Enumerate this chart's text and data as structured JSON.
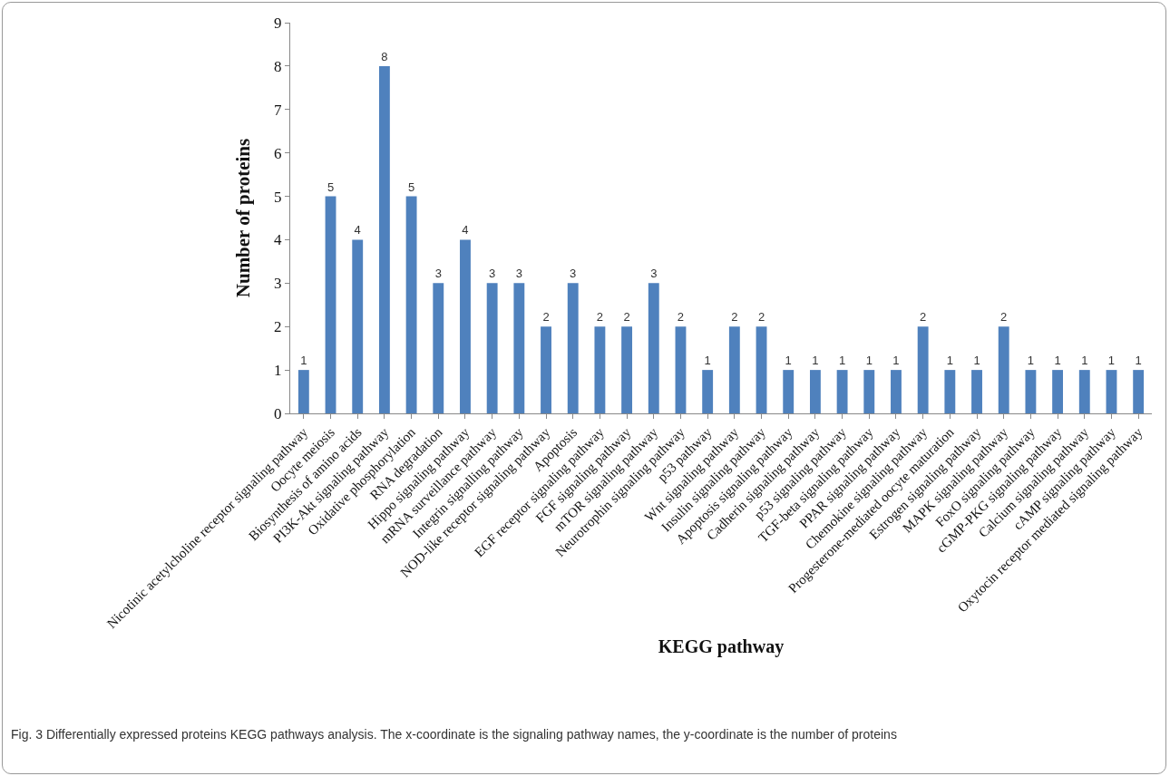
{
  "chart_data": {
    "type": "bar",
    "xlabel": "KEGG pathway",
    "ylabel": "Number of proteins",
    "categories": [
      "Nicotinic acetylcholine receptor signaling pathway",
      "Oocyte meiosis",
      "Biosynthesis of amino acids",
      "PI3K-Akt signaling pathway",
      "Oxidative phosphorylation",
      "RNA degradation",
      "Hippo signaling pathway",
      "mRNA surveillance pathway",
      "Integrin signalling pathway",
      "NOD-like receptor signaling pathway",
      "Apoptosis",
      "EGF receptor signaling pathway",
      "FGF signaling pathway",
      "mTOR signaling pathway",
      "Neurotrophin signaling pathway",
      "p53 pathway",
      "Wnt signaling pathway",
      "Insulin signaling pathway",
      "Apoptosis signaling pathway",
      "Cadherin signaling pathway",
      "p53 signaling pathway",
      "TGF-beta signaling pathway",
      "PPAR signaling pathway",
      "Chemokine signaling pathway",
      "Progesterone-mediated oocyte maturation",
      "Estrogen signaling pathway",
      "MAPK signaling pathway",
      "FoxO signaling pathway",
      "cGMP-PKG signaling pathway",
      "Calcium signaling pathway",
      "cAMP signaling pathway",
      "Oxytocin receptor mediated signaling pathway"
    ],
    "values": [
      1,
      5,
      4,
      8,
      5,
      3,
      4,
      3,
      3,
      2,
      3,
      2,
      2,
      3,
      2,
      1,
      2,
      2,
      1,
      1,
      1,
      1,
      1,
      2,
      1,
      1,
      2,
      1,
      1,
      1,
      1,
      1
    ],
    "color": "#4f81bd",
    "ylim": [
      0,
      9
    ],
    "yticks": [
      0,
      1,
      2,
      3,
      4,
      5,
      6,
      7,
      8,
      9
    ],
    "grid": false,
    "data_labels": true,
    "annotations": [
      "Fig. 3 Differentially expressed proteins KEGG pathways analysis. The x-coordinate is the signaling pathway names, the y-coordinate is the number of proteins"
    ]
  }
}
